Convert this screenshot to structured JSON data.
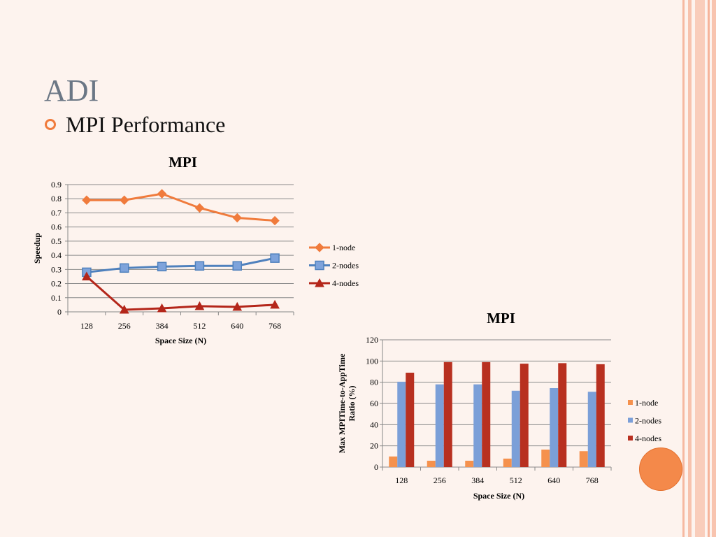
{
  "slide": {
    "title": "ADI",
    "bullet": "MPI Performance"
  },
  "colors": {
    "background": "#fdf3ee",
    "accent": "#f07b3c",
    "title_gray": "#6b7785",
    "series_1node": "#f07b3c",
    "series_2nodes": "#4f81bd",
    "series_4nodes": "#b4261a",
    "bar_1node": "#f5914d",
    "bar_2nodes": "#7b9fd8",
    "bar_4nodes": "#b83020"
  },
  "chart_data": [
    {
      "type": "line",
      "title": "MPI",
      "xlabel": "Space Size (N)",
      "ylabel": "Speedup",
      "categories": [
        "128",
        "256",
        "384",
        "512",
        "640",
        "768"
      ],
      "ylim": [
        0,
        0.9
      ],
      "yticks": [
        "0",
        "0.1",
        "0.2",
        "0.3",
        "0.4",
        "0.5",
        "0.6",
        "0.7",
        "0.8",
        "0.9"
      ],
      "grid": true,
      "legend_position": "right",
      "series": [
        {
          "name": "1-node",
          "marker": "diamond",
          "color": "#f07b3c",
          "values": [
            0.79,
            0.79,
            0.835,
            0.735,
            0.665,
            0.645
          ]
        },
        {
          "name": "2-nodes",
          "marker": "square",
          "color": "#4f81bd",
          "values": [
            0.28,
            0.31,
            0.32,
            0.325,
            0.325,
            0.38
          ]
        },
        {
          "name": "4-nodes",
          "marker": "triangle",
          "color": "#b4261a",
          "values": [
            0.25,
            0.015,
            0.025,
            0.04,
            0.035,
            0.05
          ]
        }
      ]
    },
    {
      "type": "bar",
      "title": "MPI",
      "xlabel": "Space Size (N)",
      "ylabel": "Max MPITime-to-AppTime Ratio (%)",
      "ylabel_lines": [
        "Max MPITime-to-AppTime",
        "Ratio (%)"
      ],
      "categories": [
        "128",
        "256",
        "384",
        "512",
        "640",
        "768"
      ],
      "ylim": [
        0,
        120
      ],
      "yticks": [
        "0",
        "20",
        "40",
        "60",
        "80",
        "100",
        "120"
      ],
      "grid": true,
      "legend_position": "right",
      "series": [
        {
          "name": "1-node",
          "color": "#f5914d",
          "values": [
            10,
            6,
            6,
            8,
            16.5,
            15
          ]
        },
        {
          "name": "2-nodes",
          "color": "#7b9fd8",
          "values": [
            80.5,
            78,
            78,
            72,
            74.5,
            71
          ]
        },
        {
          "name": "4-nodes",
          "color": "#b83020",
          "values": [
            89,
            99,
            99,
            97.5,
            98,
            97
          ]
        }
      ]
    }
  ]
}
